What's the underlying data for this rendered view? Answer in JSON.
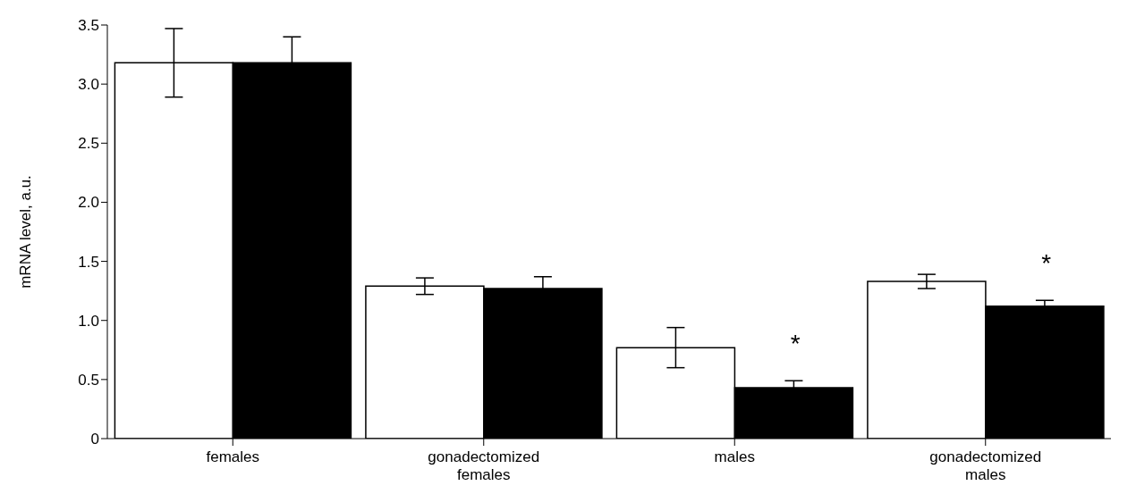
{
  "chart_data": {
    "type": "bar",
    "ylabel": "mRNA level, a.u.",
    "categories": [
      "females",
      "gonadectomized females",
      "males",
      "gonadectomized males"
    ],
    "series": [
      {
        "color": "#ffffff",
        "values": [
          3.18,
          1.29,
          0.77,
          1.33
        ],
        "errors": [
          0.29,
          0.07,
          0.17,
          0.06
        ]
      },
      {
        "color": "#000000",
        "values": [
          3.18,
          1.27,
          0.43,
          1.12
        ],
        "errors": [
          0.22,
          0.1,
          0.06,
          0.05
        ]
      }
    ],
    "ylim": [
      0,
      3.5
    ],
    "yticks": [
      {
        "value": 0,
        "label": "0"
      },
      {
        "value": 0.5,
        "label": "0.5"
      },
      {
        "value": 1,
        "label": "1.0"
      },
      {
        "value": 1.5,
        "label": "1.5"
      },
      {
        "value": 2,
        "label": "2.0"
      },
      {
        "value": 2.5,
        "label": "2.5"
      },
      {
        "value": 3,
        "label": "3.0"
      },
      {
        "value": 3.5,
        "label": "3.5"
      }
    ],
    "annotations": [
      "*",
      "*"
    ],
    "grid": false
  }
}
